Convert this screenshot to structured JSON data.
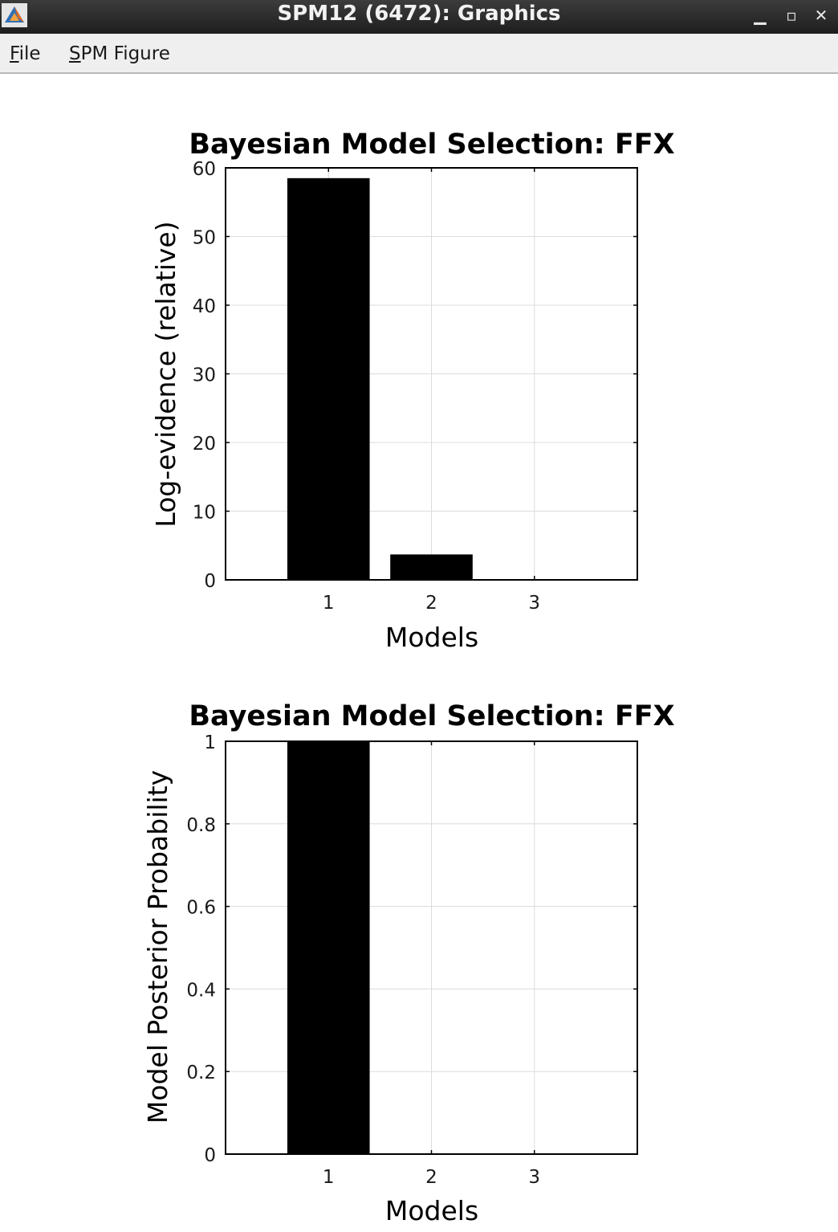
{
  "window": {
    "title": "SPM12 (6472): Graphics",
    "icons": [
      "matlab-app-icon",
      "minimize-icon",
      "maximize-icon",
      "close-icon"
    ]
  },
  "menu": {
    "items": [
      {
        "mnemonic": "F",
        "rest": "ile"
      },
      {
        "mnemonic": "S",
        "rest": "PM Figure"
      }
    ]
  },
  "chart_data": [
    {
      "type": "bar",
      "title": "Bayesian Model Selection: FFX",
      "xlabel": "Models",
      "ylabel": "Log-evidence (relative)",
      "categories": [
        "1",
        "2",
        "3"
      ],
      "values": [
        58.5,
        3.7,
        0
      ],
      "ylim": [
        0,
        60
      ],
      "yticks": [
        "0",
        "10",
        "20",
        "30",
        "40",
        "50",
        "60"
      ],
      "grid": true,
      "bar_color": "#000000"
    },
    {
      "type": "bar",
      "title": "Bayesian Model Selection: FFX",
      "xlabel": "Models",
      "ylabel": "Model Posterior Probability",
      "categories": [
        "1",
        "2",
        "3"
      ],
      "values": [
        1,
        0,
        0
      ],
      "ylim": [
        0,
        1
      ],
      "yticks": [
        "0",
        "0.2",
        "0.4",
        "0.6",
        "0.8",
        "1"
      ],
      "grid": true,
      "bar_color": "#000000"
    }
  ]
}
